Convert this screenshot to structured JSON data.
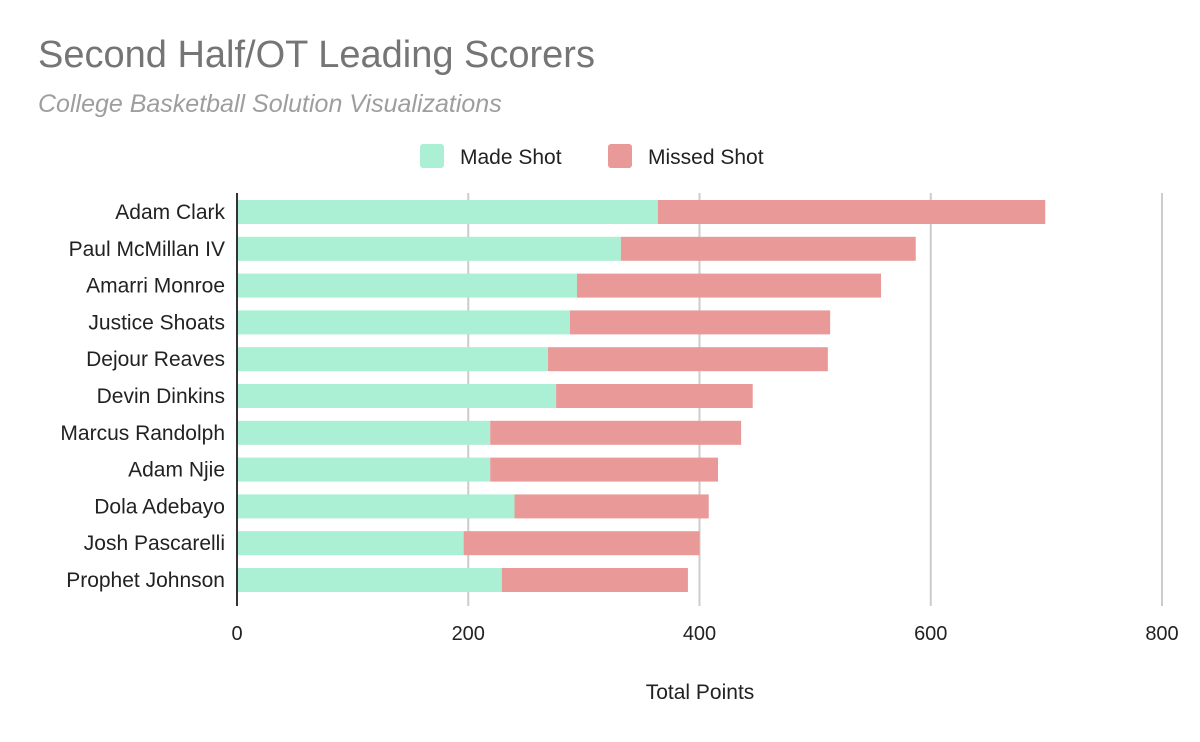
{
  "chart_data": {
    "type": "bar",
    "orientation": "horizontal",
    "stacked": true,
    "title": "Second Half/OT Leading Scorers",
    "subtitle": "College Basketball Solution Visualizations",
    "xlabel": "Total Points",
    "ylabel": "",
    "xlim": [
      0,
      800
    ],
    "xticks": [
      0,
      200,
      400,
      600,
      800
    ],
    "grid": true,
    "legend_position": "top",
    "categories": [
      "Adam Clark",
      "Paul McMillan IV",
      "Amarri Monroe",
      "Justice Shoats",
      "Dejour Reaves",
      "Devin Dinkins",
      "Marcus Randolph",
      "Adam Njie",
      "Dola Adebayo",
      "Josh Pascarelli",
      "Prophet Johnson"
    ],
    "series": [
      {
        "name": "Made Shot",
        "color": "#abefd4",
        "values": [
          364,
          332,
          294,
          288,
          269,
          276,
          219,
          219,
          240,
          196,
          229
        ]
      },
      {
        "name": "Missed Shot",
        "color": "#ea9999",
        "values": [
          335,
          255,
          263,
          225,
          242,
          170,
          217,
          197,
          168,
          204,
          161
        ]
      }
    ]
  }
}
